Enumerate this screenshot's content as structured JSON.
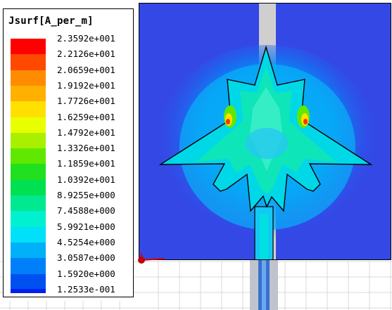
{
  "legend": {
    "title": "Jsurf[A_per_m]",
    "entries": [
      {
        "label": "2.3592e+001",
        "color": "#ff0000"
      },
      {
        "label": "2.2126e+001",
        "color": "#ff4800"
      },
      {
        "label": "2.0659e+001",
        "color": "#ff8c00"
      },
      {
        "label": "1.9192e+001",
        "color": "#ffb000"
      },
      {
        "label": "1.7726e+001",
        "color": "#ffe000"
      },
      {
        "label": "1.6259e+001",
        "color": "#e8ff00"
      },
      {
        "label": "1.4792e+001",
        "color": "#a8f000"
      },
      {
        "label": "1.3326e+001",
        "color": "#60e800"
      },
      {
        "label": "1.1859e+001",
        "color": "#20e020"
      },
      {
        "label": "1.0392e+001",
        "color": "#00e050"
      },
      {
        "label": "8.9255e+000",
        "color": "#00e890"
      },
      {
        "label": "7.4588e+000",
        "color": "#00f0d0"
      },
      {
        "label": "5.9921e+000",
        "color": "#00e0f8"
      },
      {
        "label": "4.5254e+000",
        "color": "#00b0f8"
      },
      {
        "label": "3.0587e+000",
        "color": "#0080f8"
      },
      {
        "label": "1.5920e+000",
        "color": "#0050f0"
      },
      {
        "label": "1.2533e-001",
        "color": "#0020f0"
      }
    ]
  },
  "colors": {
    "substrate": "#3448e6",
    "feedline": "#c8c8c8",
    "background": "#ffffff"
  }
}
